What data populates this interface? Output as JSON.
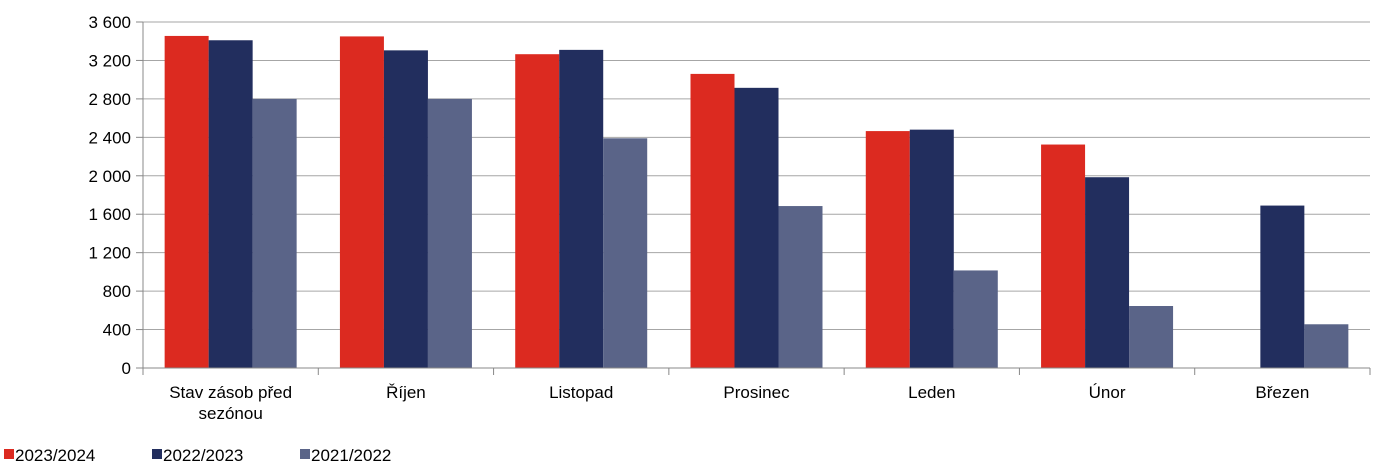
{
  "chart_data": {
    "type": "bar",
    "categories": [
      [
        "Stav zásob před",
        "sezónou"
      ],
      [
        "Říjen"
      ],
      [
        "Listopad"
      ],
      [
        "Prosinec"
      ],
      [
        "Leden"
      ],
      [
        "Únor"
      ],
      [
        "Březen"
      ]
    ],
    "series": [
      {
        "name": "2023/2024",
        "color": "#dc2a20",
        "values": [
          3455,
          3450,
          3265,
          3060,
          2465,
          2325,
          null
        ]
      },
      {
        "name": "2022/2023",
        "color": "#222e5e",
        "values": [
          3410,
          3305,
          3310,
          2915,
          2480,
          1985,
          1690
        ]
      },
      {
        "name": "2021/2022",
        "color": "#5a6488",
        "values": [
          2800,
          2800,
          2390,
          1685,
          1015,
          645,
          455
        ]
      }
    ],
    "ylim": [
      0,
      3600
    ],
    "yticks": [
      0,
      400,
      800,
      1200,
      1600,
      2000,
      2400,
      2800,
      3200,
      3600
    ],
    "ytick_labels": [
      "0",
      "400",
      "800",
      "1 200",
      "1 600",
      "2 000",
      "2 400",
      "2 800",
      "3 200",
      "3 600"
    ],
    "grid": true,
    "legend_position": "bottom-left",
    "title": "",
    "xlabel": "",
    "ylabel": ""
  }
}
